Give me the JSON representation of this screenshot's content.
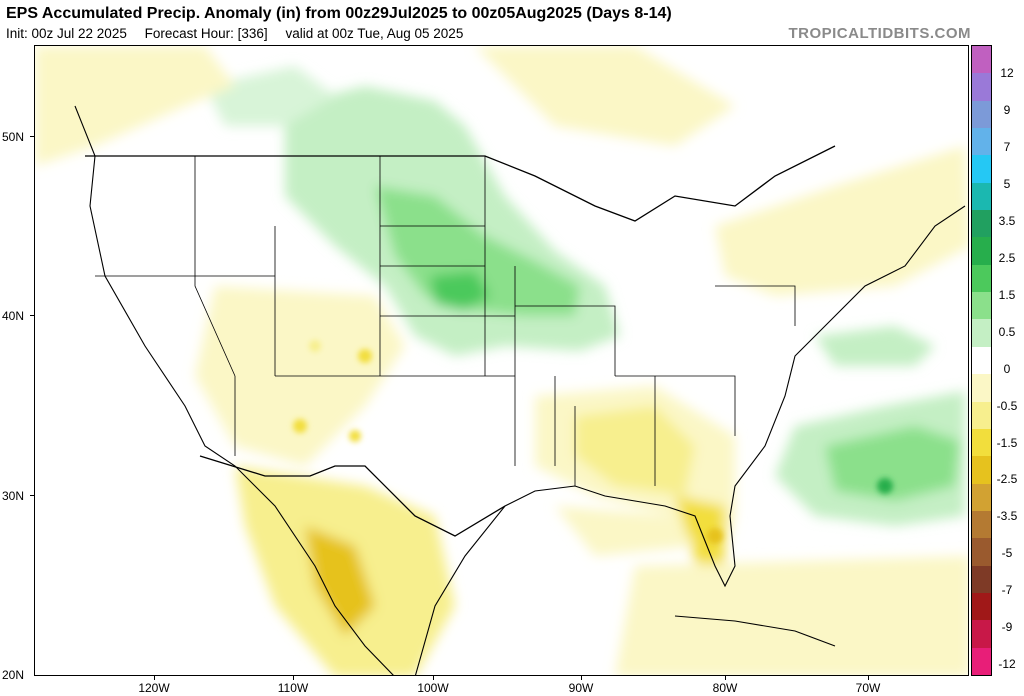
{
  "header": {
    "title": "EPS Accumulated Precip. Anomaly (in) from 00z29Jul2025 to 00z05Aug2025 (Days 8-14)",
    "init": "Init: 00z Jul 22 2025",
    "forecast_hour": "Forecast Hour: [336]",
    "valid": "valid at 00z Tue, Aug 05 2025",
    "brand": "TROPICALTIDBITS.COM"
  },
  "axes": {
    "lat_labels": [
      "50N",
      "40N",
      "30N",
      "20N"
    ],
    "lon_labels": [
      "120W",
      "110W",
      "100W",
      "90W",
      "80W",
      "70W"
    ]
  },
  "colorbar": {
    "labels": [
      "12",
      "9",
      "7",
      "5",
      "3.5",
      "2.5",
      "1.5",
      "0.5",
      "0",
      "-0.5",
      "-1.5",
      "-2.5",
      "-3.5",
      "-5",
      "-7",
      "-9",
      "-12"
    ],
    "colors": [
      "#c060c0",
      "#9a79d8",
      "#7c9ad8",
      "#62b2ea",
      "#25c8f4",
      "#1bb8b0",
      "#21a060",
      "#27ae4c",
      "#4cc95c",
      "#8be08b",
      "#c4efc4",
      "#ffffff",
      "#fbf7c6",
      "#f7ef8e",
      "#f2de3c",
      "#e6c21e",
      "#d2a232",
      "#b47a32",
      "#9a5a2e",
      "#7e3a26",
      "#a01818",
      "#c81848",
      "#e81e78"
    ]
  }
}
